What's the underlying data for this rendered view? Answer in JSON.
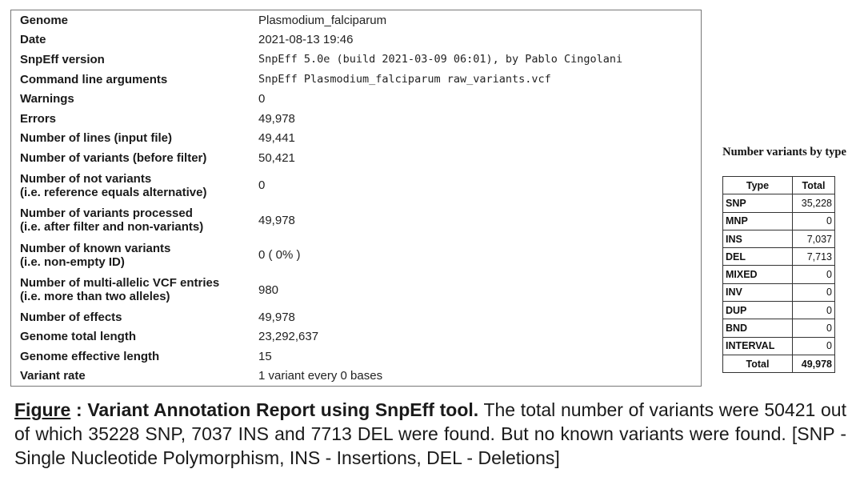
{
  "summary": {
    "rows": [
      {
        "label": "Genome",
        "value": "Plasmodium_falciparum"
      },
      {
        "label": "Date",
        "value": "2021-08-13 19:46"
      },
      {
        "label": "SnpEff version",
        "value": "SnpEff 5.0e (build 2021-03-09 06:01), by Pablo Cingolani"
      },
      {
        "label": "Command line arguments",
        "value": "SnpEff  Plasmodium_falciparum raw_variants.vcf"
      },
      {
        "label": "Warnings",
        "value": "0"
      },
      {
        "label": "Errors",
        "value": "49,978"
      },
      {
        "label": "Number of lines (input file)",
        "value": "49,441"
      },
      {
        "label": "Number of variants (before filter)",
        "value": "50,421"
      },
      {
        "label": "Number of not variants",
        "sublabel": "(i.e. reference equals alternative)",
        "value": "0"
      },
      {
        "label": "Number of variants processed",
        "sublabel": "(i.e. after filter and non-variants)",
        "value": "49,978"
      },
      {
        "label": "Number of known variants",
        "sublabel": "(i.e. non-empty ID)",
        "value": "0 ( 0% )"
      },
      {
        "label": "Number of multi-allelic VCF entries",
        "sublabel": "(i.e. more than two alleles)",
        "value": "980"
      },
      {
        "label": "Number of effects",
        "value": "49,978"
      },
      {
        "label": "Genome total length",
        "value": "23,292,637"
      },
      {
        "label": "Genome effective length",
        "value": "15"
      },
      {
        "label": "Variant rate",
        "value": "1 variant every 0 bases"
      }
    ]
  },
  "variants_by_type": {
    "title": "Number variants by type",
    "header": {
      "type": "Type",
      "total": "Total"
    },
    "rows": [
      {
        "type": "SNP",
        "total": "35,228"
      },
      {
        "type": "MNP",
        "total": "0"
      },
      {
        "type": "INS",
        "total": "7,037"
      },
      {
        "type": "DEL",
        "total": "7,713"
      },
      {
        "type": "MIXED",
        "total": "0"
      },
      {
        "type": "INV",
        "total": "0"
      },
      {
        "type": "DUP",
        "total": "0"
      },
      {
        "type": "BND",
        "total": "0"
      },
      {
        "type": "INTERVAL",
        "total": "0"
      }
    ],
    "total_row": {
      "type": "Total",
      "total": "49,978"
    }
  },
  "caption": {
    "label": "Figure",
    "separator": " : ",
    "title": "Variant Annotation Report using SnpEff tool.",
    "text": " The total number of variants were 50421 out of which 35228 SNP, 7037 INS and 7713 DEL were found. But no known variants were found. [SNP - Single Nucleotide Polymorphism, INS - Insertions, DEL - Deletions]"
  }
}
